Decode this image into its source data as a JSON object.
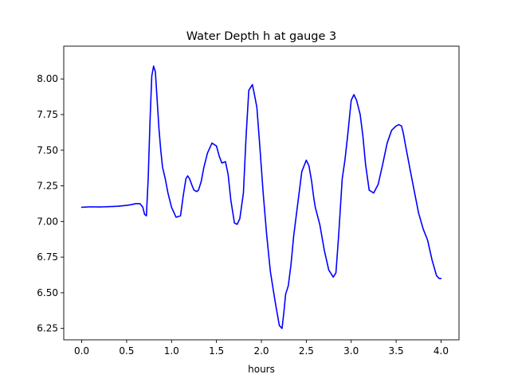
{
  "chart_data": {
    "type": "line",
    "title": "Water Depth h at gauge 3",
    "xlabel": "hours",
    "ylabel": "",
    "xlim": [
      -0.2,
      4.2
    ],
    "ylim": [
      6.17,
      8.23
    ],
    "xticks": [
      0.0,
      0.5,
      1.0,
      1.5,
      2.0,
      2.5,
      3.0,
      3.5,
      4.0
    ],
    "xtick_labels": [
      "0.0",
      "0.5",
      "1.0",
      "1.5",
      "2.0",
      "2.5",
      "3.0",
      "3.5",
      "4.0"
    ],
    "yticks": [
      6.25,
      6.5,
      6.75,
      7.0,
      7.25,
      7.5,
      7.75,
      8.0
    ],
    "ytick_labels": [
      "6.25",
      "6.50",
      "6.75",
      "7.00",
      "7.25",
      "7.50",
      "7.75",
      "8.00"
    ],
    "grid": false,
    "series": [
      {
        "color": "#0000ff",
        "x": [
          0.0,
          0.1,
          0.2,
          0.3,
          0.4,
          0.5,
          0.55,
          0.6,
          0.65,
          0.68,
          0.7,
          0.72,
          0.74,
          0.76,
          0.78,
          0.8,
          0.82,
          0.84,
          0.86,
          0.88,
          0.9,
          0.93,
          0.96,
          1.0,
          1.05,
          1.1,
          1.13,
          1.16,
          1.18,
          1.2,
          1.23,
          1.25,
          1.28,
          1.3,
          1.33,
          1.36,
          1.4,
          1.45,
          1.5,
          1.53,
          1.56,
          1.6,
          1.63,
          1.66,
          1.7,
          1.73,
          1.76,
          1.8,
          1.83,
          1.86,
          1.9,
          1.92,
          1.95,
          1.98,
          2.02,
          2.06,
          2.1,
          2.15,
          2.2,
          2.23,
          2.25,
          2.27,
          2.3,
          2.33,
          2.36,
          2.4,
          2.45,
          2.5,
          2.53,
          2.56,
          2.58,
          2.6,
          2.65,
          2.7,
          2.75,
          2.8,
          2.83,
          2.86,
          2.9,
          2.93,
          2.96,
          3.0,
          3.03,
          3.06,
          3.08,
          3.1,
          3.13,
          3.16,
          3.2,
          3.25,
          3.3,
          3.35,
          3.4,
          3.45,
          3.5,
          3.53,
          3.56,
          3.58,
          3.6,
          3.63,
          3.66,
          3.7,
          3.75,
          3.8,
          3.85,
          3.9,
          3.95,
          3.98,
          4.0
        ],
        "y": [
          7.1,
          7.103,
          7.102,
          7.104,
          7.107,
          7.113,
          7.118,
          7.125,
          7.125,
          7.1,
          7.05,
          7.04,
          7.3,
          7.7,
          8.02,
          8.09,
          8.05,
          7.85,
          7.65,
          7.5,
          7.38,
          7.3,
          7.2,
          7.1,
          7.03,
          7.04,
          7.18,
          7.3,
          7.32,
          7.3,
          7.25,
          7.22,
          7.21,
          7.22,
          7.28,
          7.38,
          7.48,
          7.55,
          7.53,
          7.46,
          7.41,
          7.42,
          7.33,
          7.15,
          6.99,
          6.98,
          7.02,
          7.2,
          7.6,
          7.92,
          7.96,
          7.9,
          7.8,
          7.55,
          7.2,
          6.9,
          6.65,
          6.45,
          6.27,
          6.25,
          6.36,
          6.49,
          6.55,
          6.7,
          6.9,
          7.1,
          7.35,
          7.43,
          7.39,
          7.28,
          7.18,
          7.1,
          6.98,
          6.8,
          6.66,
          6.61,
          6.64,
          6.9,
          7.3,
          7.43,
          7.6,
          7.85,
          7.89,
          7.85,
          7.8,
          7.75,
          7.6,
          7.4,
          7.22,
          7.2,
          7.26,
          7.4,
          7.55,
          7.64,
          7.67,
          7.68,
          7.67,
          7.62,
          7.55,
          7.45,
          7.35,
          7.22,
          7.06,
          6.95,
          6.87,
          6.73,
          6.62,
          6.6,
          6.6
        ]
      }
    ]
  }
}
